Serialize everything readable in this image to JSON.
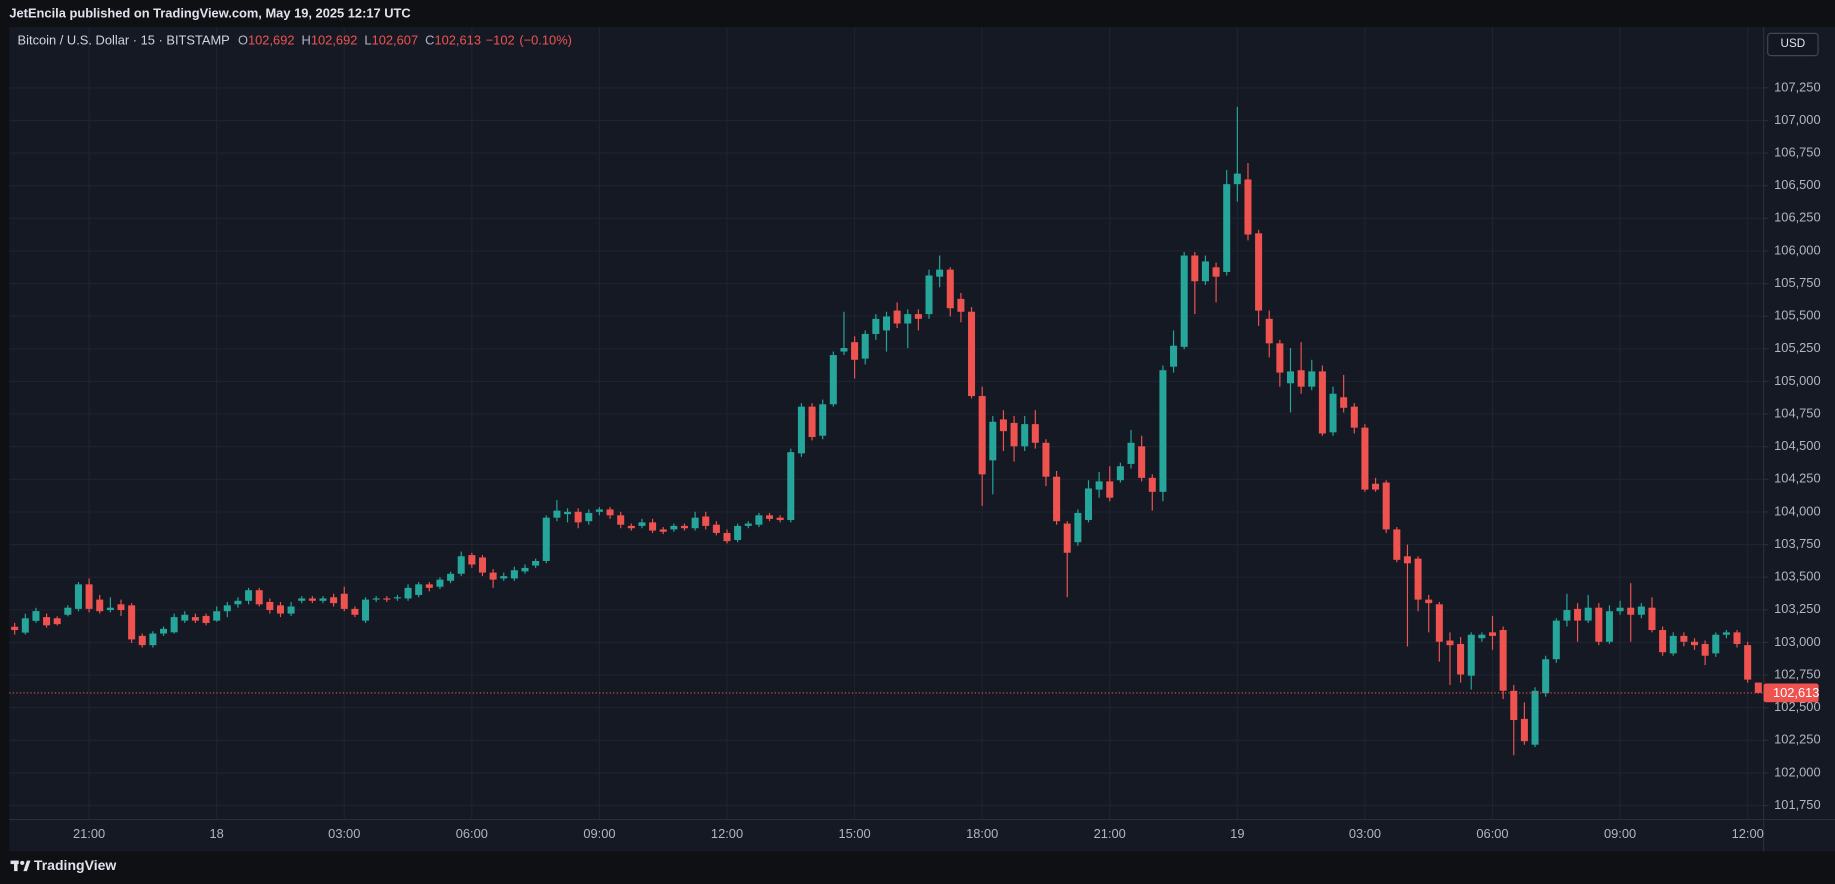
{
  "chart_data": {
    "type": "candlestick",
    "publisher": "JetEncila published on TradingView.com, May 19, 2025 12:17 UTC",
    "title": "Bitcoin / U.S. Dollar · 15 · BITSTAMP",
    "ohlc_header": [
      {
        "key": "O",
        "value": 102692,
        "label": "102,692"
      },
      {
        "key": "H",
        "value": 102692,
        "label": "102,692"
      },
      {
        "key": "L",
        "value": 102607,
        "label": "102,607"
      },
      {
        "key": "C",
        "value": 102613,
        "label": "102,613"
      }
    ],
    "change": {
      "value": -102,
      "label": "−102"
    },
    "change_percent": {
      "value": -0.1,
      "label": "(−0.10%)"
    },
    "currency": "USD",
    "brand": "TradingView",
    "up_color": "#26a69a",
    "down_color": "#ef5350",
    "grid": true,
    "categories": [
      null,
      null,
      null,
      null,
      null,
      null,
      null,
      "21:00",
      null,
      null,
      null,
      null,
      null,
      null,
      null,
      null,
      null,
      null,
      null,
      "18",
      null,
      null,
      null,
      null,
      null,
      null,
      null,
      null,
      null,
      null,
      null,
      "03:00",
      null,
      null,
      null,
      null,
      null,
      null,
      null,
      null,
      null,
      null,
      null,
      "06:00",
      null,
      null,
      null,
      null,
      null,
      null,
      null,
      null,
      null,
      null,
      null,
      "09:00",
      null,
      null,
      null,
      null,
      null,
      null,
      null,
      null,
      null,
      null,
      null,
      "12:00",
      null,
      null,
      null,
      null,
      null,
      null,
      null,
      null,
      null,
      null,
      null,
      "15:00",
      null,
      null,
      null,
      null,
      null,
      null,
      null,
      null,
      null,
      null,
      null,
      "18:00",
      null,
      null,
      null,
      null,
      null,
      null,
      null,
      null,
      null,
      null,
      null,
      "21:00",
      null,
      null,
      null,
      null,
      null,
      null,
      null,
      null,
      null,
      null,
      null,
      "19",
      null,
      null,
      null,
      null,
      null,
      null,
      null,
      null,
      null,
      null,
      null,
      "03:00",
      null,
      null,
      null,
      null,
      null,
      null,
      null,
      null,
      null,
      null,
      null,
      "06:00",
      null,
      null,
      null,
      null,
      null,
      null,
      null,
      null,
      null,
      null,
      null,
      "09:00",
      null,
      null,
      null,
      null,
      null,
      null,
      null,
      null,
      null,
      null,
      null,
      "12:00",
      null
    ],
    "open": [
      103120,
      103075,
      103165,
      103194,
      103185,
      103212,
      103257,
      103445,
      103328,
      103248,
      103292,
      103284,
      103050,
      102979,
      103068,
      103077,
      103167,
      103194,
      103203,
      103167,
      103239,
      103292,
      103319,
      103400,
      103310,
      103284,
      103221,
      103319,
      103337,
      103319,
      103346,
      103373,
      103257,
      103167,
      103328,
      103337,
      103337,
      103337,
      103364,
      103445,
      103427,
      103472,
      103526,
      103669,
      103651,
      103535,
      103490,
      103490,
      103544,
      103589,
      103624,
      103956,
      103983,
      104001,
      103929,
      104001,
      104019,
      103974,
      103893,
      103893,
      103920,
      103866,
      103866,
      103893,
      103875,
      103965,
      103902,
      103839,
      103785,
      103893,
      103902,
      103974,
      103956,
      103938,
      104449,
      104807,
      104584,
      104825,
      105229,
      105301,
      105175,
      105364,
      105391,
      105543,
      105444,
      105516,
      105516,
      105803,
      105857,
      105633,
      105534,
      104888,
      104395,
      104709,
      104682,
      104503,
      104673,
      104530,
      104270,
      103911,
      103768,
      103938,
      104171,
      104234,
      104243,
      104368,
      104503,
      104261,
      104154,
      105113,
      105265,
      105965,
      105768,
      105875,
      105839,
      106512,
      106548,
      106135,
      105480,
      105292,
      104986,
      105086,
      104960,
      105077,
      104610,
      104879,
      104807,
      104646,
      104216,
      104225,
      103866,
      103660,
      103642,
      103328,
      103292,
      103014,
      102988,
      102745,
      103032,
      103077,
      103095,
      102629,
      102414,
      102216,
      102611,
      102871,
      103167,
      103257,
      103167,
      103266,
      103005,
      103239,
      103266,
      103212,
      103266,
      103095,
      102916,
      103050,
      103005,
      102988,
      102916,
      103059,
      103077,
      102979,
      102692
    ],
    "high": [
      103150,
      103220,
      103265,
      103221,
      103200,
      103285,
      103463,
      103490,
      103364,
      103346,
      103328,
      103301,
      103068,
      103086,
      103122,
      103221,
      103239,
      103221,
      103221,
      103275,
      103310,
      103346,
      103418,
      103418,
      103337,
      103310,
      103310,
      103355,
      103355,
      103355,
      103373,
      103427,
      103275,
      103346,
      103355,
      103355,
      103364,
      103445,
      103463,
      103463,
      103499,
      103543,
      103696,
      103687,
      103669,
      103562,
      103535,
      103580,
      103597,
      103642,
      103974,
      104091,
      104028,
      104028,
      104019,
      104037,
      104037,
      104001,
      103911,
      103947,
      103947,
      103884,
      103911,
      103911,
      104001,
      104001,
      103929,
      103866,
      103911,
      103929,
      103992,
      103992,
      103974,
      104485,
      104834,
      104834,
      104861,
      105229,
      105534,
      105346,
      105391,
      105516,
      105534,
      105606,
      105552,
      105552,
      105857,
      105965,
      105875,
      105678,
      105570,
      104960,
      104736,
      104780,
      104736,
      104736,
      104780,
      104557,
      104314,
      103929,
      104019,
      104243,
      104306,
      104350,
      104377,
      104628,
      104584,
      104288,
      105122,
      105391,
      105992,
      105992,
      105965,
      105911,
      106620,
      107104,
      106674,
      106162,
      105543,
      105319,
      105256,
      105301,
      105166,
      105122,
      104960,
      105050,
      104834,
      104673,
      104261,
      104243,
      103884,
      103750,
      103660,
      103364,
      103310,
      103077,
      103041,
      103077,
      103077,
      103203,
      103122,
      102674,
      102540,
      102656,
      102898,
      103185,
      103373,
      103301,
      103364,
      103301,
      103284,
      103319,
      103454,
      103301,
      103346,
      103122,
      103077,
      103077,
      103032,
      103014,
      103077,
      103095,
      103095,
      103005,
      102692
    ],
    "low": [
      103060,
      103060,
      103150,
      103113,
      103130,
      103200,
      103239,
      103230,
      103221,
      103230,
      103203,
      102996,
      102961,
      102961,
      103050,
      103068,
      103149,
      103149,
      103131,
      103158,
      103194,
      103266,
      103292,
      103275,
      103221,
      103194,
      103203,
      103301,
      103301,
      103301,
      103275,
      103239,
      103194,
      103149,
      103310,
      103310,
      103319,
      103319,
      103346,
      103391,
      103409,
      103454,
      103508,
      103571,
      103508,
      103418,
      103472,
      103472,
      103526,
      103571,
      103606,
      103929,
      103920,
      103875,
      103902,
      103974,
      103947,
      103875,
      103857,
      103875,
      103839,
      103830,
      103848,
      103857,
      103857,
      103866,
      103821,
      103759,
      103768,
      103875,
      103884,
      103929,
      103920,
      103920,
      104422,
      104548,
      104557,
      104807,
      105202,
      105023,
      105130,
      105319,
      105229,
      105409,
      105256,
      105391,
      105480,
      105722,
      105498,
      105453,
      104870,
      104046,
      104135,
      104467,
      104386,
      104467,
      104485,
      104198,
      103902,
      103347,
      103741,
      103920,
      104109,
      104082,
      104225,
      104332,
      104234,
      104010,
      104082,
      105068,
      105247,
      105516,
      105740,
      105606,
      105812,
      106378,
      106081,
      105426,
      105184,
      104960,
      104762,
      104906,
      104933,
      104583,
      104583,
      104762,
      104601,
      104154,
      104154,
      103839,
      103615,
      102969,
      103239,
      103077,
      102853,
      102674,
      102692,
      102638,
      103005,
      102943,
      102566,
      102135,
      102216,
      102198,
      102584,
      102844,
      103122,
      103005,
      103149,
      102979,
      102988,
      103212,
      103005,
      103185,
      103077,
      102898,
      102898,
      102970,
      102943,
      102826,
      102889,
      103032,
      102961,
      102692,
      102607
    ],
    "close": [
      103095,
      103185,
      103240,
      103131,
      103140,
      103266,
      103445,
      103257,
      103239,
      103266,
      103248,
      103023,
      102979,
      103068,
      103104,
      103194,
      103212,
      103167,
      103149,
      103239,
      103284,
      103319,
      103400,
      103292,
      103248,
      103221,
      103275,
      103337,
      103319,
      103337,
      103301,
      103257,
      103212,
      103328,
      103337,
      103328,
      103346,
      103418,
      103445,
      103418,
      103481,
      103526,
      103660,
      103597,
      103535,
      103481,
      103508,
      103553,
      103571,
      103624,
      103956,
      104010,
      104001,
      103920,
      103992,
      104019,
      103974,
      103902,
      103875,
      103920,
      103857,
      103848,
      103893,
      103875,
      103956,
      103893,
      103839,
      103776,
      103893,
      103911,
      103974,
      103947,
      103938,
      104458,
      104807,
      104574,
      104825,
      105202,
      105256,
      105166,
      105364,
      105480,
      105498,
      105444,
      105516,
      105480,
      105812,
      105857,
      105561,
      105534,
      104888,
      104288,
      104691,
      104619,
      104503,
      104673,
      104530,
      104270,
      103929,
      103687,
      103992,
      104180,
      104234,
      104109,
      104350,
      104530,
      104261,
      104154,
      105086,
      105274,
      105965,
      105768,
      105920,
      105803,
      106512,
      106593,
      106126,
      105543,
      105292,
      105068,
      105077,
      104960,
      105077,
      104601,
      104906,
      104798,
      104646,
      104171,
      104171,
      103866,
      103633,
      103606,
      103328,
      103301,
      103005,
      102979,
      102754,
      103059,
      103059,
      103050,
      102630,
      102405,
      102243,
      102629,
      102871,
      103167,
      103248,
      103167,
      103266,
      103005,
      103239,
      103266,
      103212,
      103275,
      103095,
      102925,
      103050,
      103005,
      102979,
      102898,
      103059,
      103077,
      102988,
      102715,
      102613
    ],
    "last_price": {
      "value": 102613,
      "label": "102,613"
    },
    "ylim": [
      101642,
      107717
    ],
    "yticks": [
      {
        "value": 101750,
        "label": "101,750"
      },
      {
        "value": 102000,
        "label": "102,000"
      },
      {
        "value": 102250,
        "label": "102,250"
      },
      {
        "value": 102500,
        "label": "102,500"
      },
      {
        "value": 102750,
        "label": "102,750"
      },
      {
        "value": 103000,
        "label": "103,000"
      },
      {
        "value": 103250,
        "label": "103,250"
      },
      {
        "value": 103500,
        "label": "103,500"
      },
      {
        "value": 103750,
        "label": "103,750"
      },
      {
        "value": 104000,
        "label": "104,000"
      },
      {
        "value": 104250,
        "label": "104,250"
      },
      {
        "value": 104500,
        "label": "104,500"
      },
      {
        "value": 104750,
        "label": "104,750"
      },
      {
        "value": 105000,
        "label": "105,000"
      },
      {
        "value": 105250,
        "label": "105,250"
      },
      {
        "value": 105500,
        "label": "105,500"
      },
      {
        "value": 105750,
        "label": "105,750"
      },
      {
        "value": 106000,
        "label": "106,000"
      },
      {
        "value": 106250,
        "label": "106,250"
      },
      {
        "value": 106500,
        "label": "106,500"
      },
      {
        "value": 106750,
        "label": "106,750"
      },
      {
        "value": 107000,
        "label": "107,000"
      },
      {
        "value": 107250,
        "label": "107,250"
      }
    ]
  }
}
